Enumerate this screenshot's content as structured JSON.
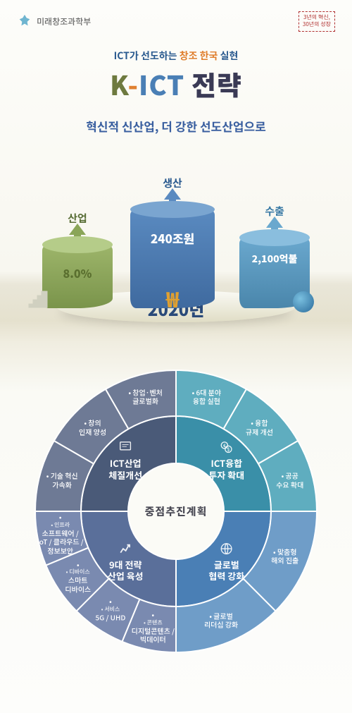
{
  "header": {
    "ministry": "미래창조과학부",
    "badge_line1": "3년의 혁신,",
    "badge_line2": "30년의 성장"
  },
  "title": {
    "pre_a": "ICT가 선도하는 ",
    "pre_accent": "창조 한국",
    "pre_b": " 실현",
    "kict": "K-ICT",
    "strategy": "전략",
    "sub": "혁신적 신산업, 더 강한 선도산업으로"
  },
  "cylinders": {
    "year": "2020년",
    "c1": {
      "label": "산업",
      "value": "8.0%"
    },
    "c2": {
      "label": "생산",
      "value": "240조원"
    },
    "c3": {
      "label": "수출",
      "value": "2,100억불"
    }
  },
  "wheel": {
    "center": "중점추진계획",
    "quads": {
      "tl": {
        "label": "ICT산업\n체질개선",
        "color": "#4a5a78",
        "outer_color": "#6e7a95"
      },
      "tr": {
        "label": "ICT융합\n투자 확대",
        "color": "#3a8fa8",
        "outer_color": "#5fadbf"
      },
      "br": {
        "label": "글로벌\n협력 강화",
        "color": "#4a7fb5",
        "outer_color": "#6f9dc8"
      },
      "bl": {
        "label": "9대 전략\n산업 육성",
        "color": "#5a6f9a",
        "outer_color": "#7a8ab0"
      }
    },
    "outer": {
      "tl": [
        "기술 혁신\n가속화",
        "창의\n인재 양성",
        "창업·벤처\n글로벌화"
      ],
      "tr": [
        "6대 분야\n융합 실현",
        "융합\n규제 개선",
        "공공\n수요 확대"
      ],
      "br": [
        "맞춤형\n해외 진출",
        "글로벌\n리더십 강화"
      ],
      "bl": [
        {
          "tag": "콘텐츠",
          "txt": "디지털콘텐츠 /\n빅데이터"
        },
        {
          "tag": "서비스",
          "txt": "5G / UHD"
        },
        {
          "tag": "디바이스",
          "txt": "스마트\n디바이스"
        },
        {
          "tag": "인프라",
          "txt": "소프트웨어 /\nIoT / 클라우드 /\n정보보안"
        }
      ]
    }
  }
}
